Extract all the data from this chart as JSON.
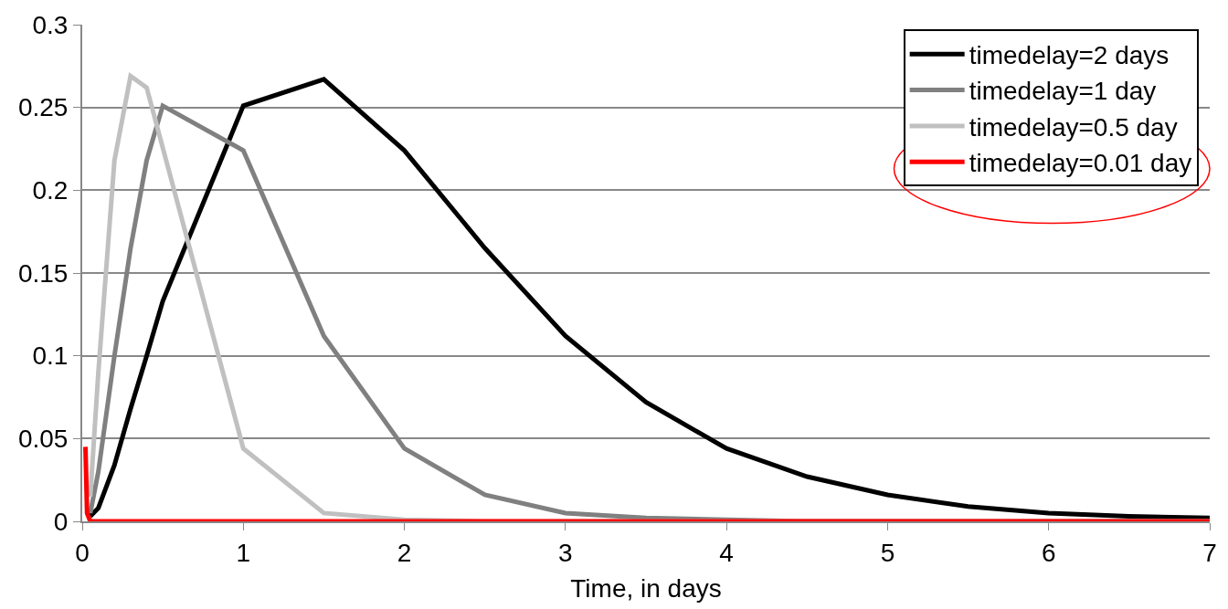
{
  "chart_data": {
    "type": "line",
    "xlabel": "Time, in days",
    "xlim": [
      0,
      7
    ],
    "xticks": [
      0,
      1,
      2,
      3,
      4,
      5,
      6,
      7
    ],
    "ylim": [
      0,
      0.3
    ],
    "yticks": [
      0,
      0.05,
      0.1,
      0.15,
      0.2,
      0.25,
      0.3
    ],
    "grid": "y",
    "legend": "top right",
    "marker": "none",
    "line_style": "solid",
    "series": [
      {
        "name": "timedelay=2 days",
        "color": "#000000",
        "x": [
          0.05,
          0.1,
          0.2,
          0.3,
          0.4,
          0.5,
          1,
          1.5,
          2,
          2.5,
          3,
          3.5,
          4,
          4.5,
          5,
          5.5,
          6,
          6.5,
          7
        ],
        "values": [
          0.003,
          0.008,
          0.034,
          0.068,
          0.1,
          0.133,
          0.251,
          0.267,
          0.224,
          0.165,
          0.112,
          0.072,
          0.044,
          0.027,
          0.016,
          0.009,
          0.005,
          0.003,
          0.002
        ]
      },
      {
        "name": "timedelay=1 day",
        "color": "#808080",
        "x": [
          0.05,
          0.1,
          0.2,
          0.3,
          0.4,
          0.5,
          1,
          1.5,
          2,
          2.5,
          3,
          3.5,
          4,
          4.5,
          5,
          5.5,
          6,
          6.5,
          7
        ],
        "values": [
          0.005,
          0.03,
          0.1,
          0.165,
          0.218,
          0.251,
          0.224,
          0.112,
          0.044,
          0.016,
          0.005,
          0.002,
          0.001,
          0,
          0,
          0,
          0,
          0,
          0
        ]
      },
      {
        "name": "timedelay=0.5 day",
        "color": "#c0c0c0",
        "x": [
          0.05,
          0.08,
          0.1,
          0.2,
          0.3,
          0.4,
          1,
          1.5,
          2,
          2.5,
          3,
          3.5,
          4,
          4.5,
          5,
          5.5,
          6,
          6.5,
          7
        ],
        "values": [
          0.015,
          0.06,
          0.09,
          0.218,
          0.269,
          0.262,
          0.044,
          0.005,
          0.001,
          0,
          0,
          0,
          0,
          0,
          0,
          0,
          0,
          0,
          0
        ]
      },
      {
        "name": "timedelay=0.01 day",
        "color": "#ff0000",
        "x": [
          0.02,
          0.03,
          0.05,
          0.1,
          0.5,
          1,
          2,
          3,
          4,
          5,
          6,
          7
        ],
        "values": [
          0.045,
          0.005,
          0,
          0,
          0,
          0,
          0,
          0,
          0,
          0,
          0,
          0
        ]
      }
    ]
  }
}
